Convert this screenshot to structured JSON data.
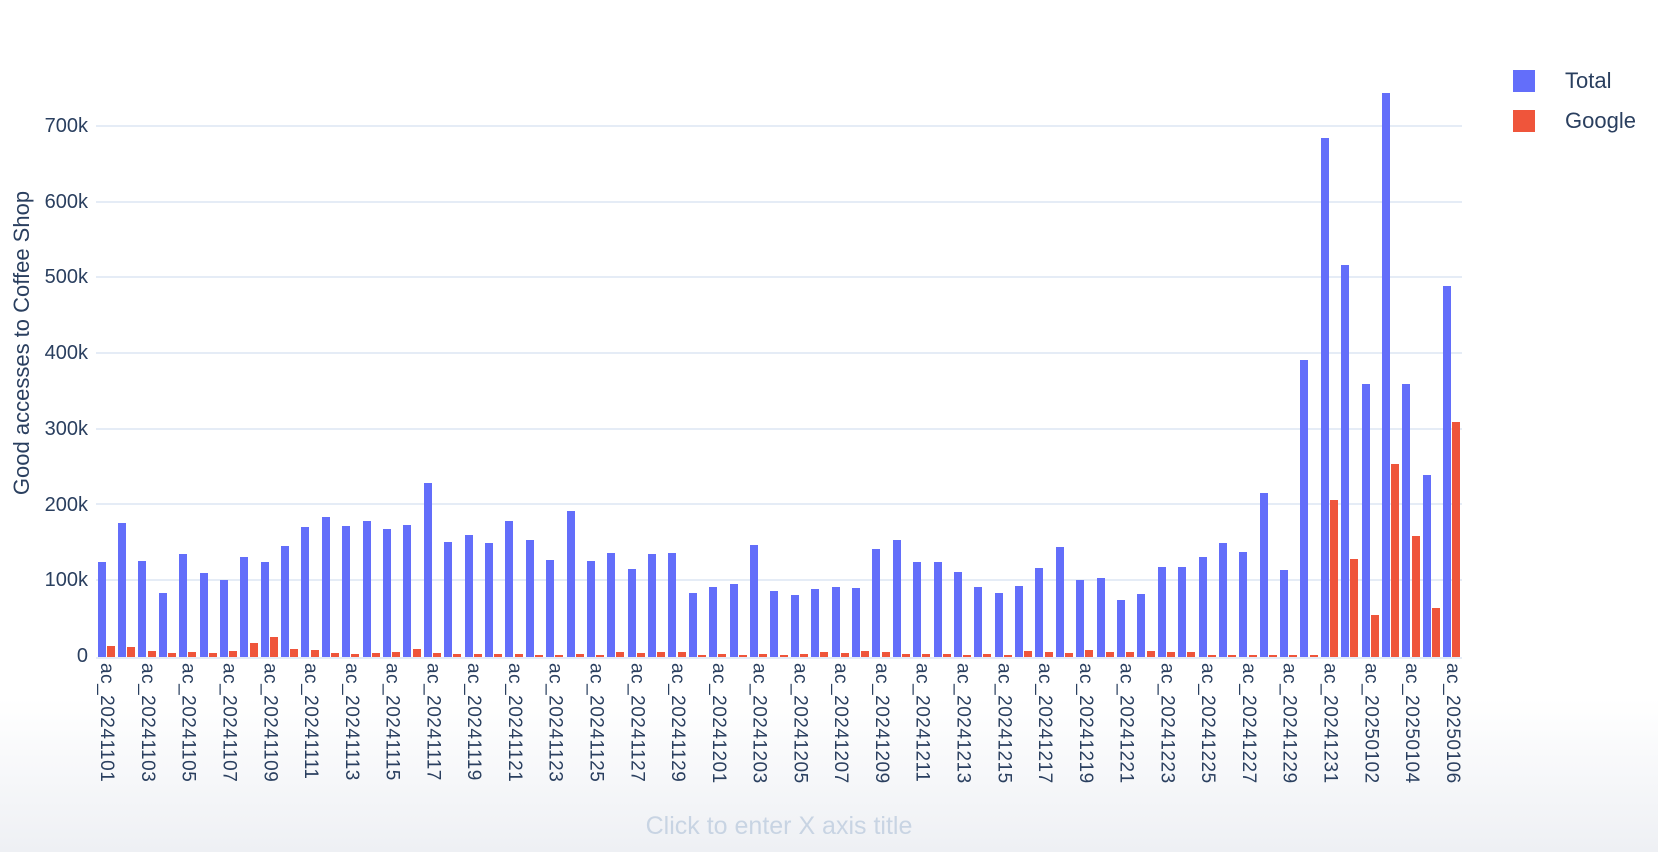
{
  "page": {
    "background": "#ffffff"
  },
  "axes": {
    "y_axis_title": "Good accesses to Coffee Shop",
    "x_axis_title_placeholder": "Click to enter X axis title",
    "y_tick_labels": [
      "0",
      "100k",
      "200k",
      "300k",
      "400k",
      "500k",
      "600k",
      "700k"
    ]
  },
  "legend": {
    "items": [
      {
        "label": "Total",
        "color": "#636efa"
      },
      {
        "label": "Google",
        "color": "#ef553b"
      }
    ]
  },
  "colors": {
    "total_bar": "#636efa",
    "google_bar": "#ef553b",
    "gridline": "#e5ecf6",
    "axis_text": "#2a3f5f",
    "placeholder_text": "#c8d4e3"
  },
  "chart_data": {
    "type": "bar",
    "title": "",
    "xlabel": "",
    "ylabel": "Good accesses to Coffee Shop",
    "values_unit": "thousands",
    "ylim_thousands": [
      0,
      765
    ],
    "y_ticks_thousands": [
      0,
      100,
      200,
      300,
      400,
      500,
      600,
      700
    ],
    "grid": true,
    "legend_position": "top-right",
    "bar_mode": "grouped",
    "categories": [
      "ac_20241101",
      "ac_20241102",
      "ac_20241103",
      "ac_20241104",
      "ac_20241105",
      "ac_20241106",
      "ac_20241107",
      "ac_20241108",
      "ac_20241109",
      "ac_20241110",
      "ac_20241111",
      "ac_20241112",
      "ac_20241113",
      "ac_20241114",
      "ac_20241115",
      "ac_20241116",
      "ac_20241117",
      "ac_20241118",
      "ac_20241119",
      "ac_20241120",
      "ac_20241121",
      "ac_20241122",
      "ac_20241123",
      "ac_20241124",
      "ac_20241125",
      "ac_20241126",
      "ac_20241127",
      "ac_20241128",
      "ac_20241129",
      "ac_20241130",
      "ac_20241201",
      "ac_20241202",
      "ac_20241203",
      "ac_20241204",
      "ac_20241205",
      "ac_20241206",
      "ac_20241207",
      "ac_20241208",
      "ac_20241209",
      "ac_20241210",
      "ac_20241211",
      "ac_20241212",
      "ac_20241213",
      "ac_20241214",
      "ac_20241215",
      "ac_20241216",
      "ac_20241217",
      "ac_20241218",
      "ac_20241219",
      "ac_20241220",
      "ac_20241221",
      "ac_20241222",
      "ac_20241223",
      "ac_20241224",
      "ac_20241225",
      "ac_20241226",
      "ac_20241227",
      "ac_20241228",
      "ac_20241229",
      "ac_20241230",
      "ac_20241231",
      "ac_20250101",
      "ac_20250102",
      "ac_20250103",
      "ac_20250104",
      "ac_20250105",
      "ac_20250106"
    ],
    "x_tick_labels_shown": [
      "ac_20241101",
      "ac_20241103",
      "ac_20241105",
      "ac_20241107",
      "ac_20241109",
      "ac_20241111",
      "ac_20241113",
      "ac_20241115",
      "ac_20241117",
      "ac_20241119",
      "ac_20241121",
      "ac_20241123",
      "ac_20241125",
      "ac_20241127",
      "ac_20241129",
      "ac_20241201",
      "ac_20241203",
      "ac_20241205",
      "ac_20241207",
      "ac_20241209",
      "ac_20241211",
      "ac_20241213",
      "ac_20241215",
      "ac_20241217",
      "ac_20241219",
      "ac_20241221",
      "ac_20241223",
      "ac_20241225",
      "ac_20241227",
      "ac_20241229",
      "ac_20241231",
      "ac_20250102",
      "ac_20250104",
      "ac_20250106"
    ],
    "series": [
      {
        "name": "Total",
        "color": "#636efa",
        "values": [
          125,
          177,
          127,
          85,
          136,
          111,
          102,
          132,
          126,
          146,
          172,
          185,
          173,
          179,
          169,
          174,
          230,
          152,
          161,
          150,
          180,
          154,
          128,
          193,
          127,
          137,
          116,
          136,
          137,
          84,
          92,
          97,
          148,
          87,
          82,
          90,
          93,
          91,
          143,
          154,
          126,
          125,
          112,
          93,
          85,
          94,
          118,
          145,
          102,
          104,
          75,
          83,
          119,
          119,
          132,
          150,
          139,
          217,
          115,
          392,
          685,
          517,
          360,
          745,
          360,
          240,
          490
        ]
      },
      {
        "name": "Google",
        "color": "#ef553b",
        "values": [
          14,
          13,
          8,
          5,
          6,
          5,
          8,
          18,
          26,
          10,
          9,
          5,
          4,
          5,
          7,
          10,
          5,
          4,
          4,
          4,
          4,
          3,
          3,
          4,
          3,
          6,
          5,
          6,
          6,
          3,
          4,
          3,
          4,
          3,
          4,
          6,
          5,
          8,
          7,
          4,
          4,
          4,
          3,
          4,
          3,
          8,
          6,
          5,
          9,
          6,
          6,
          8,
          7,
          6,
          3,
          2,
          2,
          1,
          1,
          2,
          207,
          130,
          55,
          255,
          160,
          65,
          310
        ]
      }
    ]
  }
}
